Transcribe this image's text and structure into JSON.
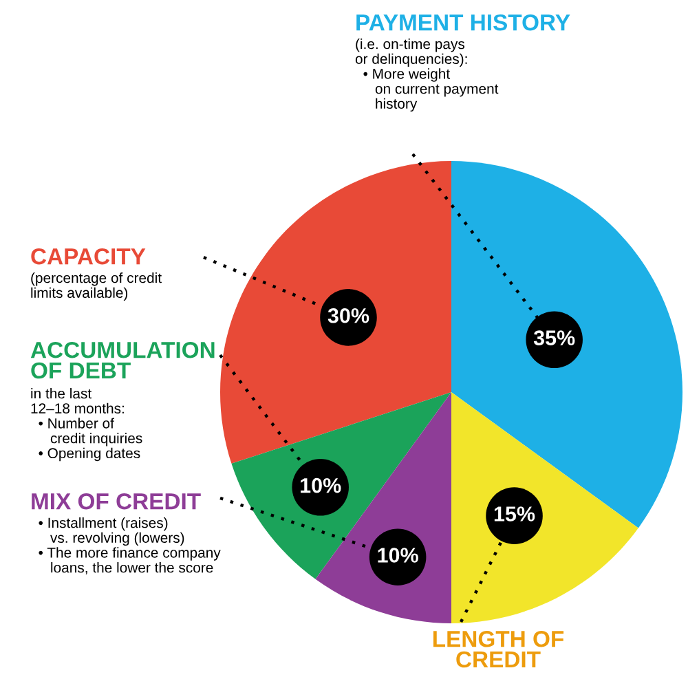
{
  "chart_data": {
    "type": "pie",
    "categories": [
      "PAYMENT HISTORY",
      "CAPACITY",
      "ACCUMULATION\nOF DEBT",
      "MIX OF CREDIT",
      "LENGTH OF\nCREDIT"
    ],
    "values": [
      35,
      30,
      10,
      10,
      15
    ],
    "value_labels": [
      "35%",
      "30%",
      "10%",
      "10%",
      "15%"
    ],
    "colors": [
      "#1eb0e6",
      "#e84a37",
      "#1ba35a",
      "#8e3d97",
      "#f2e52a"
    ],
    "annotations": [
      "(i.e. on-time pays\nor delinquencies):\n  • More weight\n     on current payment\n     history",
      "(percentage of credit\nlimits available)",
      "in the last\n12–18 months:\n  • Number of\n     credit inquiries\n  • Opening dates",
      "  • Installment (raises)\n     vs. revolving (lowers)\n  • The more finance company\n     loans, the lower the score"
    ]
  }
}
